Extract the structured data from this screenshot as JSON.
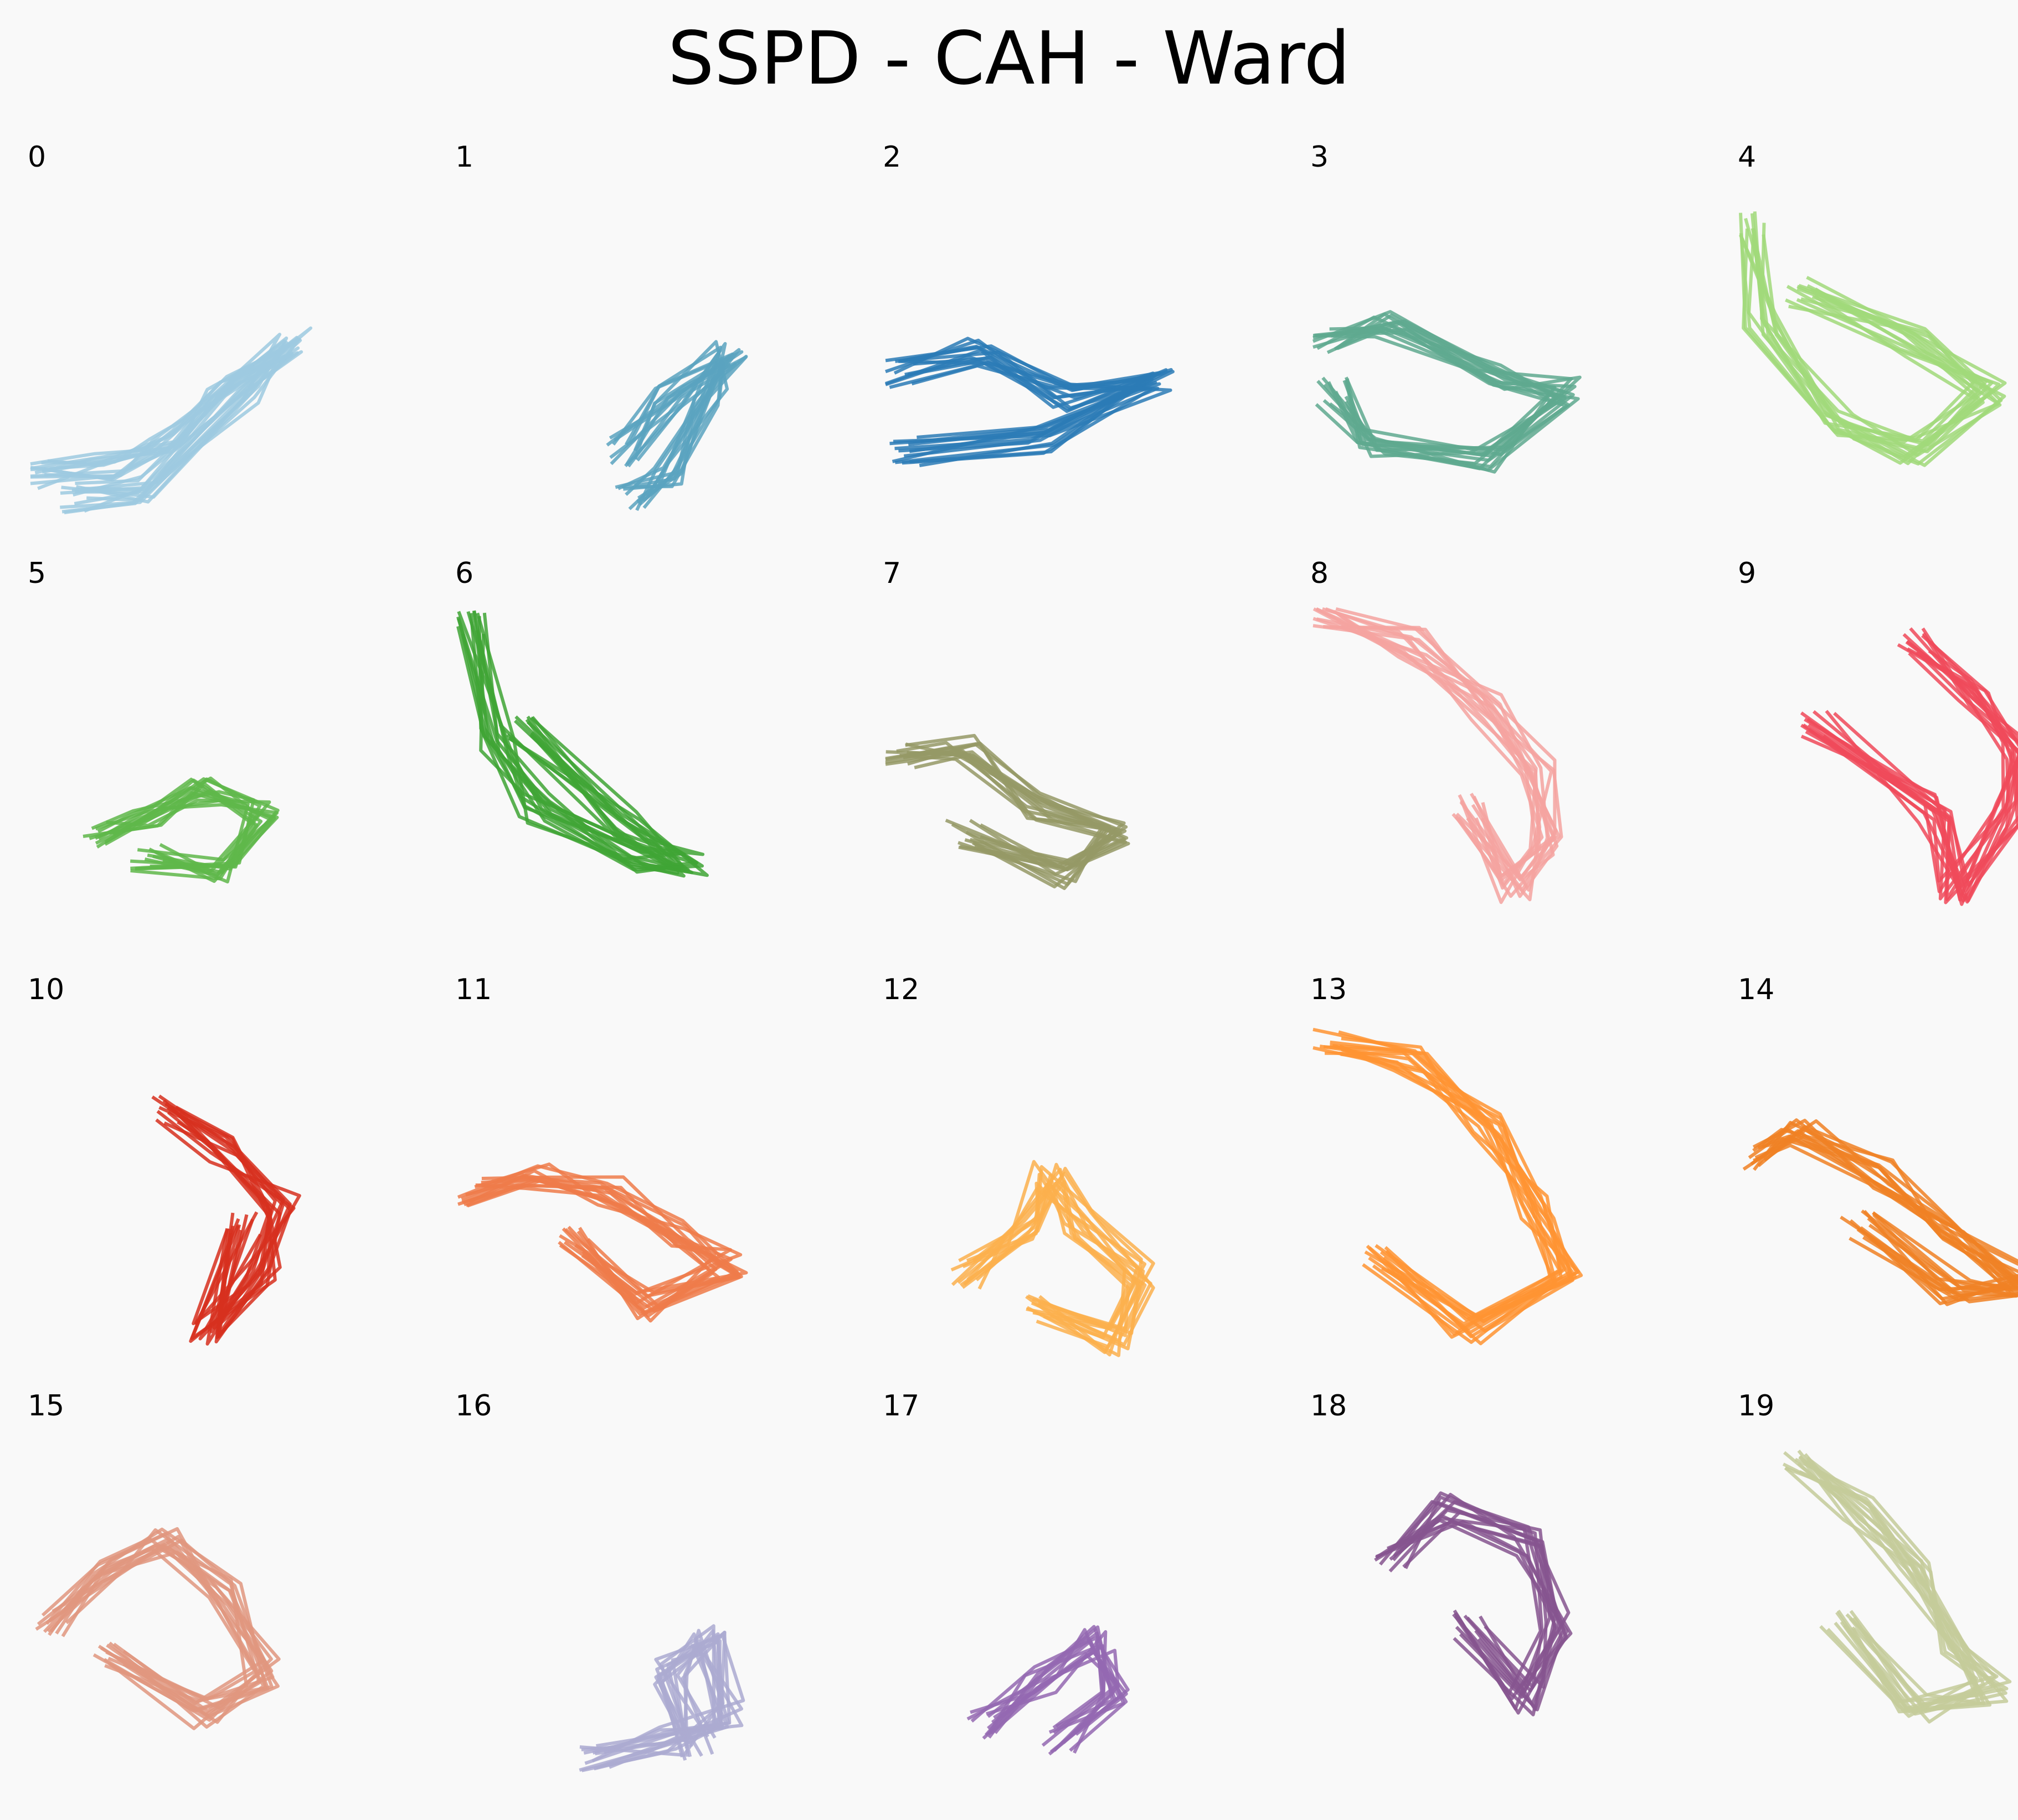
{
  "chart_data": {
    "type": "line",
    "title": "SSPD - CAH - Ward",
    "xlabel": "",
    "ylabel": "",
    "axes": "off",
    "grid": false,
    "layout": {
      "rows": 4,
      "cols": 5
    },
    "clusters": [
      {
        "label": "0",
        "color": "#9ecae1"
      },
      {
        "label": "1",
        "color": "#5ba3c0"
      },
      {
        "label": "2",
        "color": "#2c7bb6"
      },
      {
        "label": "3",
        "color": "#5fa98f"
      },
      {
        "label": "4",
        "color": "#a1d97a"
      },
      {
        "label": "5",
        "color": "#5fb74a"
      },
      {
        "label": "6",
        "color": "#3fa535"
      },
      {
        "label": "7",
        "color": "#959966"
      },
      {
        "label": "8",
        "color": "#f4a3a0"
      },
      {
        "label": "9",
        "color": "#f04a5a"
      },
      {
        "label": "10",
        "color": "#d7301f"
      },
      {
        "label": "11",
        "color": "#ef7b4a"
      },
      {
        "label": "12",
        "color": "#fbb04d"
      },
      {
        "label": "13",
        "color": "#ff9433"
      },
      {
        "label": "14",
        "color": "#f08125"
      },
      {
        "label": "15",
        "color": "#e0967f"
      },
      {
        "label": "16",
        "color": "#abaad1"
      },
      {
        "label": "17",
        "color": "#9468b1"
      },
      {
        "label": "18",
        "color": "#86558f"
      },
      {
        "label": "19",
        "color": "#c4cb9a"
      }
    ]
  }
}
